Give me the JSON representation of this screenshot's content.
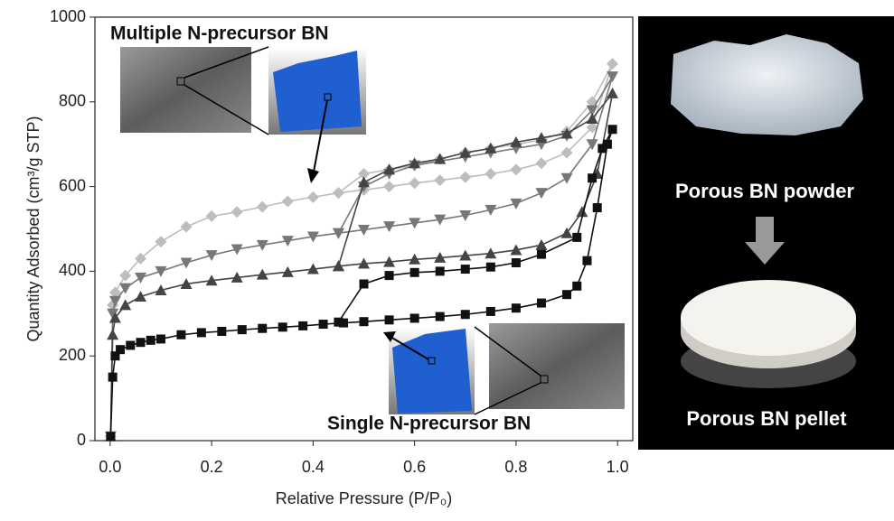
{
  "chart_data": {
    "type": "line",
    "xlabel": "Relative Pressure (P/P₀)",
    "ylabel": "Quantity Adsorbed (cm³/g STP)",
    "xlim": [
      -0.03,
      1.03
    ],
    "ylim": [
      0,
      1000
    ],
    "xticks": [
      {
        "value": 0,
        "label": "0.0"
      },
      0.2,
      0.4,
      0.6,
      0.8,
      {
        "value": 1,
        "label": "1.0"
      }
    ],
    "yticks": [
      0,
      200,
      400,
      600,
      800,
      1000
    ],
    "annotations": [
      "Multiple N-precursor BN",
      "Single N-precursor BN"
    ],
    "series": [
      {
        "color": "#bdbdbd",
        "marker": "diamond",
        "x": [
          0.001,
          0.005,
          0.01,
          0.03,
          0.06,
          0.1,
          0.15,
          0.2,
          0.25,
          0.3,
          0.35,
          0.4,
          0.45,
          0.5,
          0.55,
          0.6,
          0.65,
          0.7,
          0.75,
          0.8,
          0.85,
          0.9,
          0.95,
          0.99,
          0.95,
          0.9,
          0.85,
          0.8,
          0.75,
          0.7,
          0.65,
          0.6,
          0.55,
          0.5,
          0.45
        ],
        "values": [
          10,
          320,
          350,
          390,
          430,
          470,
          505,
          530,
          540,
          552,
          565,
          575,
          585,
          592,
          600,
          608,
          615,
          622,
          630,
          640,
          655,
          680,
          740,
          890,
          800,
          730,
          710,
          700,
          690,
          680,
          665,
          650,
          640,
          630,
          585
        ]
      },
      {
        "color": "#777777",
        "marker": "triangle-down",
        "x": [
          0.001,
          0.005,
          0.01,
          0.03,
          0.06,
          0.1,
          0.15,
          0.2,
          0.25,
          0.3,
          0.35,
          0.4,
          0.45,
          0.5,
          0.55,
          0.6,
          0.65,
          0.7,
          0.75,
          0.8,
          0.85,
          0.9,
          0.95,
          0.99,
          0.95,
          0.9,
          0.85,
          0.8,
          0.75,
          0.7,
          0.6,
          0.55,
          0.5,
          0.45
        ],
        "values": [
          10,
          300,
          330,
          360,
          385,
          400,
          420,
          438,
          452,
          462,
          472,
          482,
          490,
          498,
          506,
          514,
          522,
          532,
          545,
          560,
          585,
          620,
          700,
          860,
          780,
          720,
          700,
          690,
          680,
          670,
          650,
          630,
          600,
          490
        ]
      },
      {
        "color": "#444444",
        "marker": "triangle-up",
        "x": [
          0.001,
          0.005,
          0.01,
          0.03,
          0.06,
          0.1,
          0.15,
          0.2,
          0.25,
          0.3,
          0.35,
          0.4,
          0.45,
          0.5,
          0.55,
          0.6,
          0.65,
          0.7,
          0.75,
          0.8,
          0.85,
          0.9,
          0.93,
          0.96,
          0.99,
          0.95,
          0.9,
          0.85,
          0.8,
          0.75,
          0.7,
          0.65,
          0.6,
          0.55,
          0.5,
          0.45
        ],
        "values": [
          10,
          250,
          290,
          320,
          340,
          355,
          370,
          378,
          385,
          392,
          398,
          405,
          412,
          418,
          422,
          428,
          432,
          437,
          442,
          450,
          462,
          490,
          540,
          630,
          820,
          760,
          725,
          715,
          705,
          690,
          680,
          665,
          655,
          640,
          610,
          412
        ]
      },
      {
        "color": "#111111",
        "marker": "square",
        "x": [
          0.001,
          0.005,
          0.01,
          0.02,
          0.04,
          0.06,
          0.08,
          0.1,
          0.14,
          0.18,
          0.22,
          0.26,
          0.3,
          0.34,
          0.38,
          0.42,
          0.46,
          0.5,
          0.55,
          0.6,
          0.65,
          0.7,
          0.75,
          0.8,
          0.85,
          0.9,
          0.92,
          0.94,
          0.96,
          0.98,
          0.99,
          0.97,
          0.95,
          0.92,
          0.85,
          0.8,
          0.75,
          0.7,
          0.65,
          0.6,
          0.55,
          0.5,
          0.45
        ],
        "values": [
          10,
          150,
          200,
          215,
          225,
          232,
          237,
          240,
          250,
          255,
          258,
          262,
          265,
          268,
          271,
          275,
          278,
          281,
          285,
          289,
          293,
          298,
          305,
          313,
          325,
          345,
          365,
          425,
          550,
          700,
          735,
          690,
          620,
          480,
          440,
          420,
          410,
          405,
          400,
          397,
          390,
          370,
          280
        ]
      }
    ]
  },
  "photo_panel": {
    "captions": [
      "Porous BN powder",
      "Porous BN pellet"
    ]
  }
}
